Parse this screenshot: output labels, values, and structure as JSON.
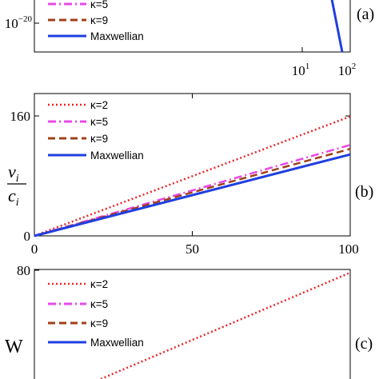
{
  "chart_data": [
    {
      "panel": "(a)",
      "type": "line",
      "xscale": "log",
      "yscale": "log",
      "xlim": [
        1,
        100
      ],
      "x_ticks": [
        {
          "value": 10,
          "base": "10",
          "exp": "1"
        },
        {
          "value": 100,
          "base": "10",
          "exp": "2"
        }
      ],
      "y_ticks": [
        {
          "value": 1e-20,
          "base": "10",
          "exp": "−20"
        }
      ],
      "legend": {
        "placement": "top-left",
        "entries": [
          "κ=5",
          "κ=9",
          "Maxwellian"
        ]
      },
      "series": [
        {
          "name": "Maxwellian",
          "color": "#1f3fe0",
          "style": "solid",
          "x": [
            72,
            80
          ],
          "y": [
            1e-18,
            1e-24
          ]
        }
      ]
    },
    {
      "panel": "(b)",
      "type": "line",
      "xlim": [
        0,
        100
      ],
      "ylim": [
        0,
        180
      ],
      "x_ticks": [
        "0",
        "50",
        "100"
      ],
      "y_ticks": [
        "0",
        "160"
      ],
      "ylabel": {
        "top": "v",
        "top_sub": "i",
        "bottom": "c",
        "bottom_sub": "i"
      },
      "legend": {
        "placement": "top-left",
        "entries": [
          "κ=2",
          "κ=5",
          "κ=9",
          "Maxwellian"
        ]
      },
      "series": [
        {
          "name": "κ=2",
          "color": "#e8272a",
          "style": "dotted",
          "x": [
            0,
            100
          ],
          "y": [
            0,
            151
          ]
        },
        {
          "name": "κ=5",
          "color": "#e848e8",
          "style": "dashdot",
          "x": [
            0,
            100
          ],
          "y": [
            0,
            115
          ]
        },
        {
          "name": "κ=9",
          "color": "#a0401a",
          "style": "dashed",
          "x": [
            0,
            100
          ],
          "y": [
            0,
            110
          ]
        },
        {
          "name": "Maxwellian",
          "color": "#1f3fe0",
          "style": "solid",
          "x": [
            0,
            100
          ],
          "y": [
            0,
            103
          ]
        }
      ]
    },
    {
      "panel": "(c)",
      "type": "line",
      "xlim": [
        0,
        100
      ],
      "y_ticks": [
        "80"
      ],
      "ylabel": "W",
      "legend": {
        "placement": "top-left",
        "entries": [
          "κ=2",
          "κ=5",
          "κ=9",
          "Maxwellian"
        ]
      },
      "series": [
        {
          "name": "κ=2",
          "color": "#e8272a",
          "style": "dotted",
          "x": [
            21,
            100
          ],
          "y": [
            37,
            76
          ]
        }
      ]
    }
  ]
}
